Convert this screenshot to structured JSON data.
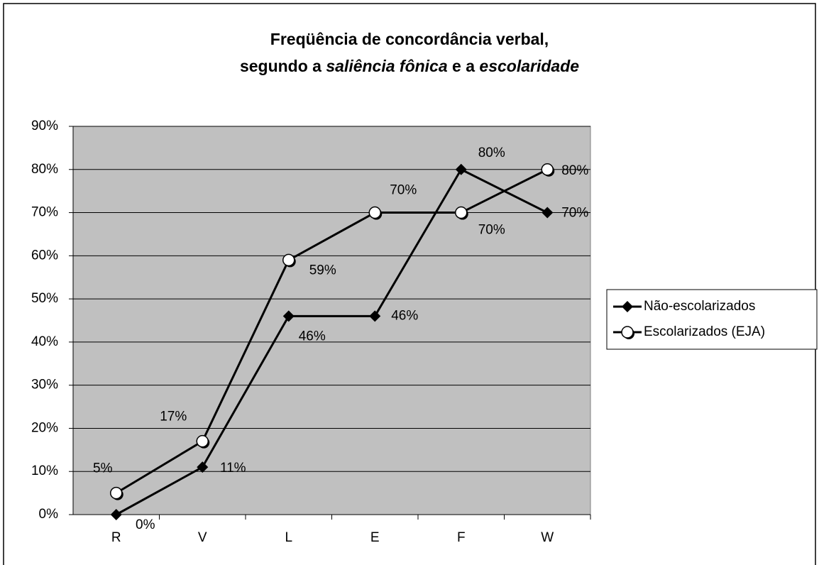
{
  "chart_data": {
    "type": "line",
    "title": {
      "lines": [
        [
          {
            "text": "Freqüência de concordância verbal,",
            "italic": false
          }
        ],
        [
          {
            "text": "segundo a ",
            "italic": false
          },
          {
            "text": "saliência fônica",
            "italic": true
          },
          {
            "text": " e a ",
            "italic": false
          },
          {
            "text": "escolaridade",
            "italic": true
          }
        ]
      ]
    },
    "categories": [
      "R",
      "V",
      "L",
      "E",
      "F",
      "W"
    ],
    "series": [
      {
        "name": "Não-escolarizados",
        "color": "#000000",
        "marker": "diamond",
        "values": [
          0,
          11,
          46,
          46,
          80,
          70
        ],
        "value_labels": [
          "0%",
          "11%",
          "46%",
          "46%",
          "80%",
          "70%"
        ]
      },
      {
        "name": "Escolarizados (EJA)",
        "color": "#000000",
        "marker": "circle",
        "values": [
          5,
          17,
          59,
          70,
          70,
          80
        ],
        "value_labels": [
          "5%",
          "17%",
          "59%",
          "70%",
          "70%",
          "80%"
        ]
      }
    ],
    "ylim": [
      0,
      90
    ],
    "yticks": [
      {
        "value": 0,
        "label": "0%"
      },
      {
        "value": 10,
        "label": "10%"
      },
      {
        "value": 20,
        "label": "20%"
      },
      {
        "value": 30,
        "label": "30%"
      },
      {
        "value": 40,
        "label": "40%"
      },
      {
        "value": 50,
        "label": "50%"
      },
      {
        "value": 60,
        "label": "60%"
      },
      {
        "value": 70,
        "label": "70%"
      },
      {
        "value": 80,
        "label": "80%"
      },
      {
        "value": 90,
        "label": "90%"
      }
    ],
    "grid": true,
    "plot_background": "#c0c0c0",
    "legend": "right"
  }
}
